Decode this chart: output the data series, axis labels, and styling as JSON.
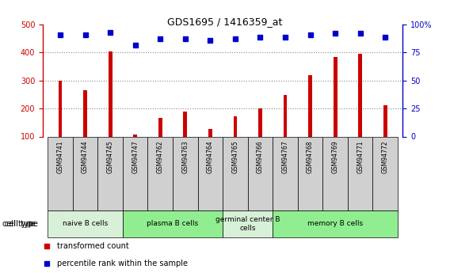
{
  "title": "GDS1695 / 1416359_at",
  "samples": [
    "GSM94741",
    "GSM94744",
    "GSM94745",
    "GSM94747",
    "GSM94762",
    "GSM94763",
    "GSM94764",
    "GSM94765",
    "GSM94766",
    "GSM94767",
    "GSM94768",
    "GSM94769",
    "GSM94771",
    "GSM94772"
  ],
  "bar_values": [
    300,
    265,
    403,
    108,
    167,
    190,
    128,
    172,
    200,
    248,
    318,
    383,
    395,
    212
  ],
  "dot_values": [
    91,
    91,
    93,
    82,
    87,
    87,
    86,
    87,
    89,
    89,
    91,
    92,
    92,
    89
  ],
  "bar_color": "#cc0000",
  "dot_color": "#0000cc",
  "ylim_left": [
    100,
    500
  ],
  "ylim_right": [
    0,
    100
  ],
  "yticks_left": [
    100,
    200,
    300,
    400,
    500
  ],
  "yticks_right": [
    0,
    25,
    50,
    75,
    100
  ],
  "ytick_labels_right": [
    "0",
    "25",
    "50",
    "75",
    "100%"
  ],
  "cell_groups": [
    {
      "label": "naive B cells",
      "start": 0,
      "end": 3,
      "color": "#d8f0d8"
    },
    {
      "label": "plasma B cells",
      "start": 3,
      "end": 7,
      "color": "#90ee90"
    },
    {
      "label": "germinal center B\ncells",
      "start": 7,
      "end": 9,
      "color": "#d8f0d8"
    },
    {
      "label": "memory B cells",
      "start": 9,
      "end": 14,
      "color": "#90ee90"
    }
  ],
  "legend_items": [
    {
      "color": "#cc0000",
      "label": "transformed count"
    },
    {
      "color": "#0000cc",
      "label": "percentile rank within the sample"
    }
  ],
  "left_color": "#cc0000",
  "right_color": "#0000cc",
  "cell_type_label": "cell type",
  "grid_color": "#888888",
  "sample_box_color": "#d0d0d0",
  "bar_width": 0.15
}
